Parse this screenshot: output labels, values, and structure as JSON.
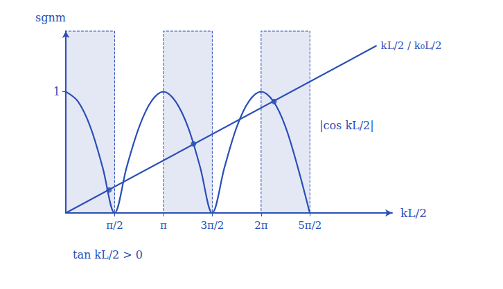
{
  "chart_data": {
    "type": "line",
    "xlabel": "kL/2",
    "ylabel": "sgnm",
    "xlim": [
      0,
      10.5
    ],
    "ylim": [
      0,
      1.5
    ],
    "xticks": [
      {
        "value": 1.5708,
        "label": "π/2"
      },
      {
        "value": 3.1416,
        "label": "π"
      },
      {
        "value": 4.7124,
        "label": "3π/2"
      },
      {
        "value": 6.2832,
        "label": "2π"
      },
      {
        "value": 7.854,
        "label": "5π/2"
      }
    ],
    "yticks": [
      1
    ],
    "grid": false,
    "series": [
      {
        "name": "|cos kL/2|",
        "color": "#2b4fb5",
        "line_style": "solid",
        "x": [
          0,
          0.39,
          0.79,
          1.18,
          1.57,
          1.96,
          2.36,
          2.75,
          3.14,
          3.53,
          3.93,
          4.32,
          4.71,
          5.11,
          5.5,
          5.89,
          6.28,
          6.68,
          7.07,
          7.46,
          7.85
        ],
        "values": [
          1,
          0.92,
          0.71,
          0.38,
          0,
          0.38,
          0.71,
          0.92,
          1,
          0.92,
          0.71,
          0.38,
          0,
          0.38,
          0.71,
          0.92,
          1,
          0.92,
          0.71,
          0.38,
          0
        ]
      },
      {
        "name": "kL/2 / k₀L/2",
        "color": "#2b4fb5",
        "line_style": "solid",
        "x": [
          0,
          10
        ],
        "values": [
          0,
          1.38
        ]
      }
    ],
    "points": {
      "x": [
        1.39,
        4.11,
        6.7
      ],
      "values": [
        0.19,
        0.57,
        0.92
      ],
      "color": "#2b4fb5",
      "marker": "circle"
    },
    "regions": {
      "label": "tan kL/2 > 0",
      "color": "#2b4fb5",
      "ranges": [
        [
          0,
          1.5708
        ],
        [
          3.1416,
          4.7124
        ],
        [
          6.2832,
          7.854
        ]
      ]
    }
  }
}
